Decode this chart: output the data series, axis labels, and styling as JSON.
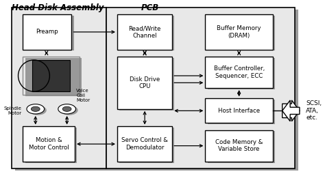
{
  "title_hda": "Head Disk Assembly",
  "title_pcb": "PCB",
  "bg_color": "#ffffff",
  "box_fill": "#ffffff",
  "box_edge": "#000000",
  "shadow_color": "#999999",
  "outer_fill": "#e8e8e8",
  "blocks": {
    "preamp": [
      0.055,
      0.72,
      0.155,
      0.2
    ],
    "rw_channel": [
      0.355,
      0.72,
      0.175,
      0.2
    ],
    "buf_memory": [
      0.635,
      0.72,
      0.215,
      0.2
    ],
    "disk_cpu": [
      0.355,
      0.38,
      0.175,
      0.3
    ],
    "buf_ctrl": [
      0.635,
      0.5,
      0.215,
      0.18
    ],
    "host_iface": [
      0.635,
      0.3,
      0.215,
      0.14
    ],
    "motion": [
      0.055,
      0.08,
      0.165,
      0.2
    ],
    "servo": [
      0.355,
      0.08,
      0.175,
      0.2
    ],
    "code_mem": [
      0.635,
      0.08,
      0.215,
      0.18
    ]
  },
  "block_labels": {
    "preamp": "Preamp",
    "rw_channel": "Read/Write\nChannel",
    "buf_memory": "Buffer Memory\n(DRAM)",
    "disk_cpu": "Disk Drive\nCPU",
    "buf_ctrl": "Buffer Controller,\nSequencer, ECC",
    "host_iface": "Host Interface",
    "motion": "Motion &\nMotor Control",
    "servo": "Servo Control &\nDemodulator",
    "code_mem": "Code Memory &\nVariable Store"
  },
  "scsi_label": "SCSI,\nATA,\netc.",
  "spindle_label": "Spindle\nMotor",
  "vcm_label": "Voice\nCoil\nMotor",
  "outer_hda": [
    0.02,
    0.04,
    0.3,
    0.92
  ],
  "outer_pcb": [
    0.32,
    0.04,
    0.6,
    0.92
  ]
}
